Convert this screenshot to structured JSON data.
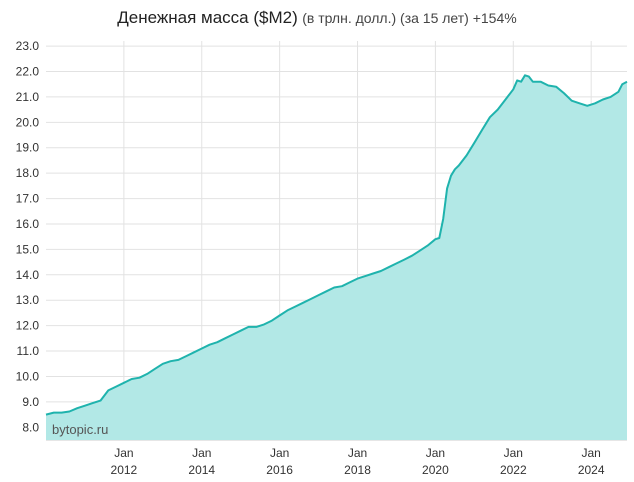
{
  "chart_data": {
    "type": "area",
    "title": "Денежная масса ($M2)",
    "subtitle": "(в трлн. долл.) (за 15 лет) +154%",
    "watermark": "bytopic.ru",
    "ylim": [
      7.5,
      23.2
    ],
    "y_ticks": [
      "8.0",
      "9.0",
      "10.0",
      "11.0",
      "12.0",
      "13.0",
      "14.0",
      "15.0",
      "16.0",
      "17.0",
      "18.0",
      "19.0",
      "20.0",
      "21.0",
      "22.0",
      "23.0"
    ],
    "x_ticks": [
      {
        "month": "Jan",
        "year": "2012",
        "t": 2012.0
      },
      {
        "month": "Jan",
        "year": "2014",
        "t": 2014.0
      },
      {
        "month": "Jan",
        "year": "2016",
        "t": 2016.0
      },
      {
        "month": "Jan",
        "year": "2018",
        "t": 2018.0
      },
      {
        "month": "Jan",
        "year": "2020",
        "t": 2020.0
      },
      {
        "month": "Jan",
        "year": "2022",
        "t": 2022.0
      },
      {
        "month": "Jan",
        "year": "2024",
        "t": 2024.0
      }
    ],
    "xlim": [
      2010.0,
      2024.92
    ],
    "grid": true,
    "line_color": "#1fb3ad",
    "fill_color": "#b2e8e6",
    "points": [
      [
        2010.0,
        8.5
      ],
      [
        2010.2,
        8.58
      ],
      [
        2010.4,
        8.58
      ],
      [
        2010.6,
        8.62
      ],
      [
        2010.8,
        8.75
      ],
      [
        2011.0,
        8.85
      ],
      [
        2011.2,
        8.95
      ],
      [
        2011.4,
        9.05
      ],
      [
        2011.6,
        9.45
      ],
      [
        2011.8,
        9.6
      ],
      [
        2012.0,
        9.75
      ],
      [
        2012.2,
        9.9
      ],
      [
        2012.4,
        9.95
      ],
      [
        2012.6,
        10.1
      ],
      [
        2012.8,
        10.3
      ],
      [
        2013.0,
        10.5
      ],
      [
        2013.2,
        10.6
      ],
      [
        2013.4,
        10.65
      ],
      [
        2013.6,
        10.8
      ],
      [
        2013.8,
        10.95
      ],
      [
        2014.0,
        11.1
      ],
      [
        2014.2,
        11.25
      ],
      [
        2014.4,
        11.35
      ],
      [
        2014.6,
        11.5
      ],
      [
        2014.8,
        11.65
      ],
      [
        2015.0,
        11.8
      ],
      [
        2015.2,
        11.95
      ],
      [
        2015.4,
        11.95
      ],
      [
        2015.6,
        12.05
      ],
      [
        2015.8,
        12.2
      ],
      [
        2016.0,
        12.4
      ],
      [
        2016.2,
        12.6
      ],
      [
        2016.4,
        12.75
      ],
      [
        2016.6,
        12.9
      ],
      [
        2016.8,
        13.05
      ],
      [
        2017.0,
        13.2
      ],
      [
        2017.2,
        13.35
      ],
      [
        2017.4,
        13.5
      ],
      [
        2017.6,
        13.55
      ],
      [
        2017.8,
        13.7
      ],
      [
        2018.0,
        13.85
      ],
      [
        2018.2,
        13.95
      ],
      [
        2018.4,
        14.05
      ],
      [
        2018.6,
        14.15
      ],
      [
        2018.8,
        14.3
      ],
      [
        2019.0,
        14.45
      ],
      [
        2019.2,
        14.6
      ],
      [
        2019.4,
        14.75
      ],
      [
        2019.6,
        14.95
      ],
      [
        2019.8,
        15.15
      ],
      [
        2020.0,
        15.4
      ],
      [
        2020.1,
        15.45
      ],
      [
        2020.2,
        16.2
      ],
      [
        2020.3,
        17.4
      ],
      [
        2020.4,
        17.9
      ],
      [
        2020.5,
        18.15
      ],
      [
        2020.6,
        18.3
      ],
      [
        2020.8,
        18.7
      ],
      [
        2021.0,
        19.2
      ],
      [
        2021.2,
        19.7
      ],
      [
        2021.4,
        20.2
      ],
      [
        2021.6,
        20.5
      ],
      [
        2021.8,
        20.9
      ],
      [
        2022.0,
        21.3
      ],
      [
        2022.1,
        21.65
      ],
      [
        2022.2,
        21.6
      ],
      [
        2022.3,
        21.85
      ],
      [
        2022.4,
        21.8
      ],
      [
        2022.5,
        21.6
      ],
      [
        2022.7,
        21.6
      ],
      [
        2022.9,
        21.45
      ],
      [
        2023.1,
        21.4
      ],
      [
        2023.3,
        21.15
      ],
      [
        2023.5,
        20.85
      ],
      [
        2023.7,
        20.75
      ],
      [
        2023.9,
        20.65
      ],
      [
        2024.1,
        20.75
      ],
      [
        2024.3,
        20.9
      ],
      [
        2024.5,
        21.0
      ],
      [
        2024.7,
        21.2
      ],
      [
        2024.8,
        21.5
      ],
      [
        2024.92,
        21.6
      ]
    ]
  }
}
